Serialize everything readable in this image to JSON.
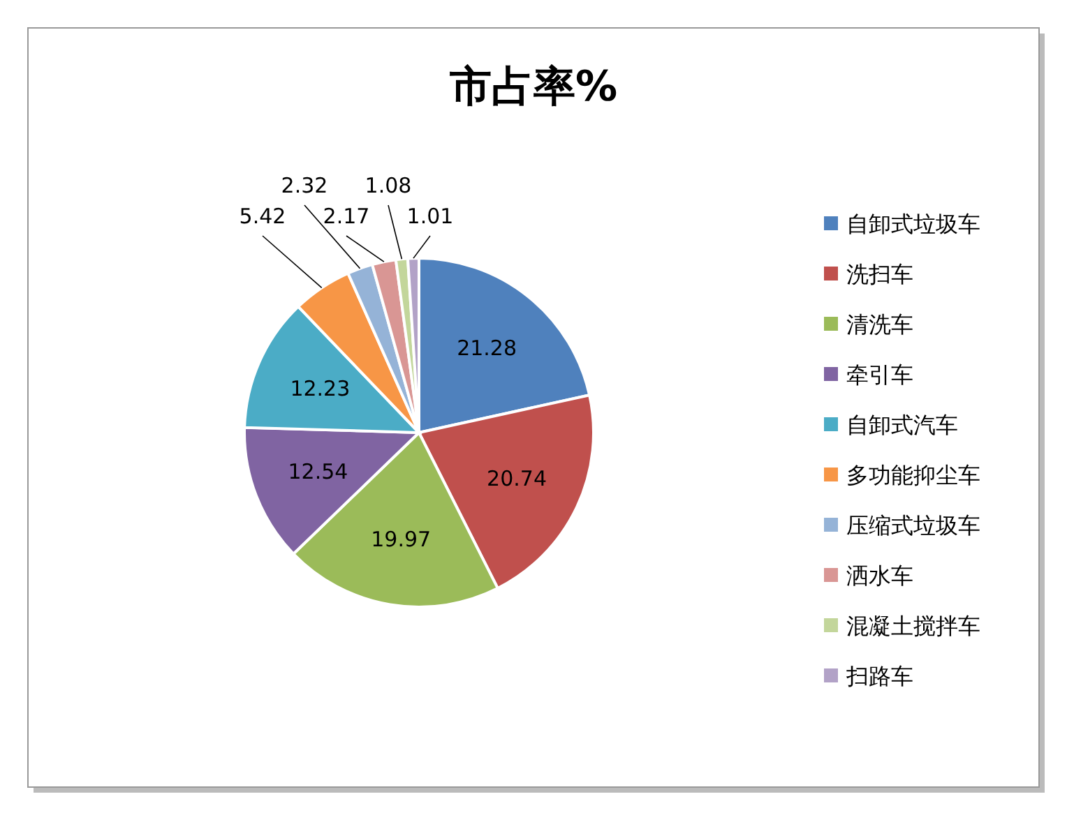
{
  "chart_data": {
    "type": "pie",
    "title": "市占率%",
    "categories": [
      "自卸式垃圾车",
      "洗扫车",
      "清洗车",
      "牵引车",
      "自卸式汽车",
      "多功能抑尘车",
      "压缩式垃圾车",
      "洒水车",
      "混凝土搅拌车",
      "扫路车"
    ],
    "values": [
      21.28,
      20.74,
      19.97,
      12.54,
      12.23,
      5.42,
      2.32,
      2.17,
      1.08,
      1.01
    ],
    "colors": [
      "#4f81bd",
      "#c0504d",
      "#9bbb59",
      "#8064a2",
      "#4bacc6",
      "#f79646",
      "#95b3d7",
      "#d99694",
      "#c3d69b",
      "#b2a2c7"
    ],
    "data_labels": true,
    "legend": "right"
  }
}
